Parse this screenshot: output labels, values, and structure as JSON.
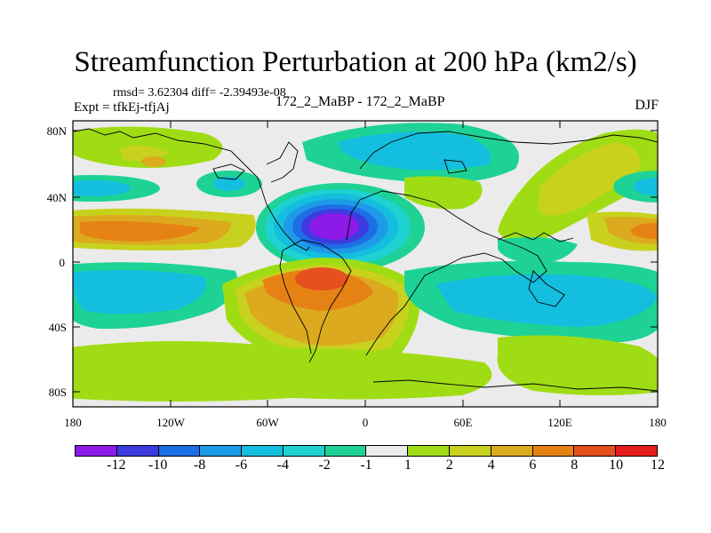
{
  "title": "Streamfunction Perturbation at 200 hPa (km2/s)",
  "stats": "rmsd= 3.62304 diff= -2.39493e-08",
  "expt": "Expt = tfkEj-tfjAj",
  "cases": "172_2_MaBP - 172_2_MaBP",
  "season": "DJF",
  "lat_labels": [
    "80N",
    "40N",
    "0",
    "40S",
    "80S"
  ],
  "lon_labels": [
    "180",
    "120W",
    "60W",
    "0",
    "60E",
    "120E",
    "180"
  ],
  "colorbar": {
    "labels": [
      "-12",
      "-10",
      "-8",
      "-6",
      "-4",
      "-2",
      "-1",
      "1",
      "2",
      "4",
      "6",
      "8",
      "10",
      "12"
    ],
    "colors": [
      "#8c1ae8",
      "#3c3ce0",
      "#1e6ee6",
      "#1e9be6",
      "#14bede",
      "#1ed2d2",
      "#1ed296",
      "#ebebeb",
      "#a0dc14",
      "#c8d21e",
      "#dcaa1e",
      "#e68214",
      "#e6501e",
      "#e61e1e"
    ]
  }
}
